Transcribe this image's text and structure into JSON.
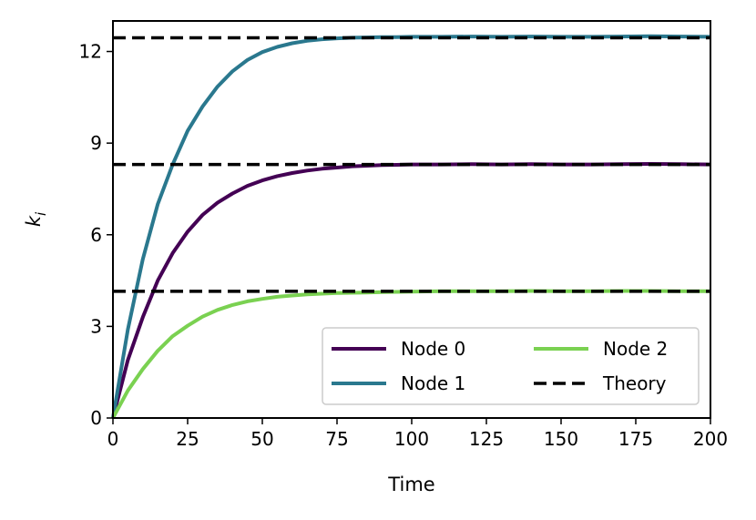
{
  "chart_data": {
    "type": "line",
    "title": "",
    "xlabel": "Time",
    "ylabel": "k_i",
    "ylabel_parts": {
      "base": "k",
      "subscript": "i"
    },
    "xlim": [
      0,
      200
    ],
    "ylim": [
      0,
      13
    ],
    "xticks": [
      0,
      25,
      50,
      75,
      100,
      125,
      150,
      175,
      200
    ],
    "yticks": [
      0,
      3,
      6,
      9,
      12
    ],
    "grid": false,
    "legend": {
      "position": "lower-right",
      "columns": 2
    },
    "x": [
      0,
      5,
      10,
      15,
      20,
      25,
      30,
      35,
      40,
      45,
      50,
      55,
      60,
      65,
      70,
      75,
      80,
      85,
      90,
      95,
      100,
      110,
      120,
      130,
      140,
      150,
      160,
      170,
      180,
      190,
      200
    ],
    "series": [
      {
        "name": "Node 0",
        "color": "#440154",
        "style": "solid",
        "values": [
          0.0,
          1.9,
          3.3,
          4.5,
          5.4,
          6.1,
          6.65,
          7.05,
          7.35,
          7.6,
          7.78,
          7.92,
          8.02,
          8.1,
          8.16,
          8.2,
          8.24,
          8.26,
          8.28,
          8.29,
          8.3,
          8.3,
          8.31,
          8.3,
          8.31,
          8.3,
          8.3,
          8.31,
          8.32,
          8.31,
          8.3
        ]
      },
      {
        "name": "Node 1",
        "color": "#2a788e",
        "style": "solid",
        "values": [
          0.0,
          2.9,
          5.2,
          7.0,
          8.3,
          9.4,
          10.2,
          10.85,
          11.35,
          11.72,
          11.98,
          12.15,
          12.27,
          12.35,
          12.4,
          12.43,
          12.45,
          12.46,
          12.47,
          12.47,
          12.48,
          12.48,
          12.49,
          12.48,
          12.49,
          12.48,
          12.48,
          12.49,
          12.5,
          12.49,
          12.48
        ]
      },
      {
        "name": "Node 2",
        "color": "#7ad151",
        "style": "solid",
        "values": [
          0.0,
          0.9,
          1.6,
          2.2,
          2.68,
          3.02,
          3.32,
          3.54,
          3.7,
          3.82,
          3.9,
          3.97,
          4.01,
          4.05,
          4.07,
          4.09,
          4.1,
          4.11,
          4.12,
          4.13,
          4.14,
          4.15,
          4.15,
          4.15,
          4.16,
          4.15,
          4.15,
          4.16,
          4.16,
          4.15,
          4.15
        ]
      }
    ],
    "reference_lines": [
      {
        "name": "Theory",
        "color": "#000000",
        "style": "dashed",
        "values": [
          4.15,
          8.3,
          12.45
        ]
      }
    ],
    "legend_entries": [
      {
        "label": "Node 0",
        "color": "#440154",
        "style": "solid"
      },
      {
        "label": "Node 2",
        "color": "#7ad151",
        "style": "solid"
      },
      {
        "label": "Node 1",
        "color": "#2a788e",
        "style": "solid"
      },
      {
        "label": "Theory",
        "color": "#000000",
        "style": "dashed"
      }
    ]
  }
}
